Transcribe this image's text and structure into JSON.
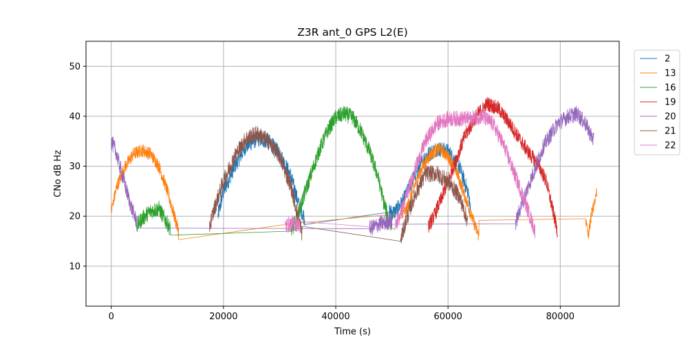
{
  "chart_data": {
    "type": "line",
    "title": "Z3R ant_0 GPS L2(E)",
    "xlabel": "Time (s)",
    "ylabel": "CNo dB Hz",
    "xlim": [
      -4500,
      90500
    ],
    "ylim": [
      2,
      55
    ],
    "xticks": [
      0,
      20000,
      40000,
      60000,
      80000
    ],
    "xtick_labels": [
      "0",
      "20000",
      "40000",
      "60000",
      "80000"
    ],
    "yticks": [
      10,
      20,
      30,
      40,
      50
    ],
    "ytick_labels": [
      "10",
      "20",
      "30",
      "40",
      "50"
    ],
    "grid": true,
    "legend_position": "outside-right-top",
    "series": [
      {
        "name": "2",
        "color": "#1f77b4",
        "noise": 1.6,
        "points": [
          [
            19000,
            20
          ],
          [
            20000,
            25
          ],
          [
            22000,
            30
          ],
          [
            24000,
            34
          ],
          [
            26000,
            35.5
          ],
          [
            28000,
            35
          ],
          [
            30000,
            32.5
          ],
          [
            32000,
            28
          ],
          [
            33500,
            22
          ],
          [
            34500,
            19.5
          ],
          [
            49500,
            20.8
          ],
          [
            50500,
            20.8
          ],
          [
            52000,
            23
          ],
          [
            54000,
            28
          ],
          [
            56000,
            32
          ],
          [
            58000,
            33.5
          ],
          [
            60000,
            33
          ],
          [
            62000,
            30
          ],
          [
            63500,
            25
          ],
          [
            64000,
            22
          ]
        ]
      },
      {
        "name": "13",
        "color": "#ff7f0e",
        "noise": 1.3,
        "points": [
          [
            0,
            21
          ],
          [
            1000,
            26
          ],
          [
            2500,
            30
          ],
          [
            4000,
            32.5
          ],
          [
            5500,
            33.2
          ],
          [
            7000,
            32.5
          ],
          [
            8500,
            30
          ],
          [
            10000,
            25
          ],
          [
            11000,
            21
          ],
          [
            12000,
            17
          ],
          [
            12000,
            16.5
          ],
          [
            32000,
            18.5
          ],
          [
            51500,
            20.5
          ],
          [
            52500,
            21
          ],
          [
            54000,
            26
          ],
          [
            55500,
            30
          ],
          [
            57000,
            32.5
          ],
          [
            58500,
            33.5
          ],
          [
            60000,
            32
          ],
          [
            61500,
            29
          ],
          [
            63000,
            24
          ],
          [
            64500,
            19
          ],
          [
            65500,
            16
          ],
          [
            65500,
            19
          ],
          [
            84500,
            19.5
          ],
          [
            85000,
            16
          ],
          [
            85500,
            20
          ],
          [
            86500,
            25
          ]
        ]
      },
      {
        "name": "16",
        "color": "#2ca02c",
        "noise": 1.6,
        "points": [
          [
            4500,
            18
          ],
          [
            5500,
            19.5
          ],
          [
            7000,
            21
          ],
          [
            8500,
            21.5
          ],
          [
            9500,
            19.5
          ],
          [
            10500,
            17.5
          ],
          [
            10500,
            17.5
          ],
          [
            32000,
            17
          ],
          [
            33000,
            19
          ],
          [
            34000,
            23
          ],
          [
            35500,
            28
          ],
          [
            37000,
            33
          ],
          [
            38500,
            37
          ],
          [
            40000,
            39.8
          ],
          [
            41500,
            40.5
          ],
          [
            43000,
            39.8
          ],
          [
            44500,
            37
          ],
          [
            46000,
            33
          ],
          [
            47500,
            28
          ],
          [
            48500,
            23
          ],
          [
            49500,
            19
          ],
          [
            50000,
            18.5
          ]
        ]
      },
      {
        "name": "19",
        "color": "#d62728",
        "noise": 1.5,
        "points": [
          [
            56500,
            18
          ],
          [
            57500,
            20
          ],
          [
            59000,
            24
          ],
          [
            61000,
            30
          ],
          [
            63000,
            36
          ],
          [
            65000,
            40
          ],
          [
            67000,
            42.5
          ],
          [
            69000,
            41.5
          ],
          [
            71000,
            38.5
          ],
          [
            73000,
            35
          ],
          [
            74500,
            32.5
          ],
          [
            76000,
            30.5
          ],
          [
            77500,
            27
          ],
          [
            78500,
            22
          ],
          [
            79500,
            17
          ]
        ]
      },
      {
        "name": "20",
        "color": "#9467bd",
        "noise": 1.6,
        "points": [
          [
            0,
            35
          ],
          [
            800,
            33
          ],
          [
            2000,
            28
          ],
          [
            3500,
            22
          ],
          [
            4500,
            19
          ],
          [
            4500,
            19
          ],
          [
            46000,
            17.5
          ],
          [
            48000,
            18.5
          ],
          [
            50000,
            19
          ],
          [
            50000,
            19
          ],
          [
            72000,
            18.5
          ],
          [
            73000,
            22
          ],
          [
            75000,
            28
          ],
          [
            77000,
            34
          ],
          [
            79500,
            38.5
          ],
          [
            81500,
            40
          ],
          [
            83000,
            40.5
          ],
          [
            84500,
            38.5
          ],
          [
            86000,
            35
          ]
        ]
      },
      {
        "name": "21",
        "color": "#8c564b",
        "noise": 1.7,
        "points": [
          [
            17500,
            18
          ],
          [
            18500,
            22
          ],
          [
            20000,
            27
          ],
          [
            22000,
            32
          ],
          [
            24000,
            35.5
          ],
          [
            26000,
            36.5
          ],
          [
            28000,
            35
          ],
          [
            30000,
            32
          ],
          [
            32000,
            26
          ],
          [
            33500,
            19
          ],
          [
            34000,
            16.5
          ],
          [
            51500,
            15
          ],
          [
            52500,
            19
          ],
          [
            54000,
            24
          ],
          [
            56000,
            28.5
          ],
          [
            58000,
            28.5
          ],
          [
            60000,
            27
          ],
          [
            62000,
            24
          ],
          [
            63500,
            19
          ]
        ]
      },
      {
        "name": "22",
        "color": "#e377c2",
        "noise": 1.6,
        "points": [
          [
            31000,
            18
          ],
          [
            32000,
            18.5
          ],
          [
            32500,
            18.5
          ],
          [
            33500,
            18.5
          ],
          [
            50500,
            17.5
          ],
          [
            52000,
            22
          ],
          [
            54000,
            29
          ],
          [
            56000,
            35
          ],
          [
            58000,
            38.5
          ],
          [
            60000,
            39.5
          ],
          [
            62000,
            39.5
          ],
          [
            64000,
            39.5
          ],
          [
            66000,
            40
          ],
          [
            68000,
            38.5
          ],
          [
            70000,
            34
          ],
          [
            72000,
            28
          ],
          [
            74000,
            22
          ],
          [
            75500,
            17
          ]
        ]
      }
    ]
  }
}
